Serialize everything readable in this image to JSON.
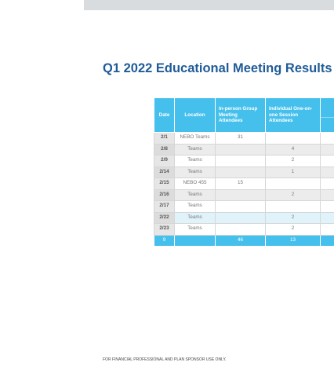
{
  "title": "Q1 2022 Educational Meeting Results",
  "table": {
    "headers": [
      "Date",
      "Location",
      "In-person Group Meeting Attendees",
      "Individual One-on-one Session Attendees"
    ],
    "rows": [
      {
        "date": "2/1",
        "location": "NEBO Teams",
        "in_person": 31
      },
      {
        "date": "2/8",
        "location": "Teams",
        "individual": 4
      },
      {
        "date": "2/9",
        "location": "Teams",
        "individual": 2
      },
      {
        "date": "2/14",
        "location": "Teams",
        "individual": 1
      },
      {
        "date": "2/15",
        "location": "NEBO 455",
        "in_person": 15
      },
      {
        "date": "2/16",
        "location": "Teams",
        "individual": 2
      },
      {
        "date": "2/17",
        "location": "Teams"
      },
      {
        "date": "2/22",
        "location": "Teams",
        "individual": 2
      },
      {
        "date": "2/23",
        "location": "Teams",
        "individual": 2
      }
    ],
    "totals": {
      "date": 9,
      "in_person": 46,
      "individual": 13
    }
  },
  "footer": "FOR FINANCIAL PROFESSIONAL AND PLAN SPONSOR USE ONLY."
}
